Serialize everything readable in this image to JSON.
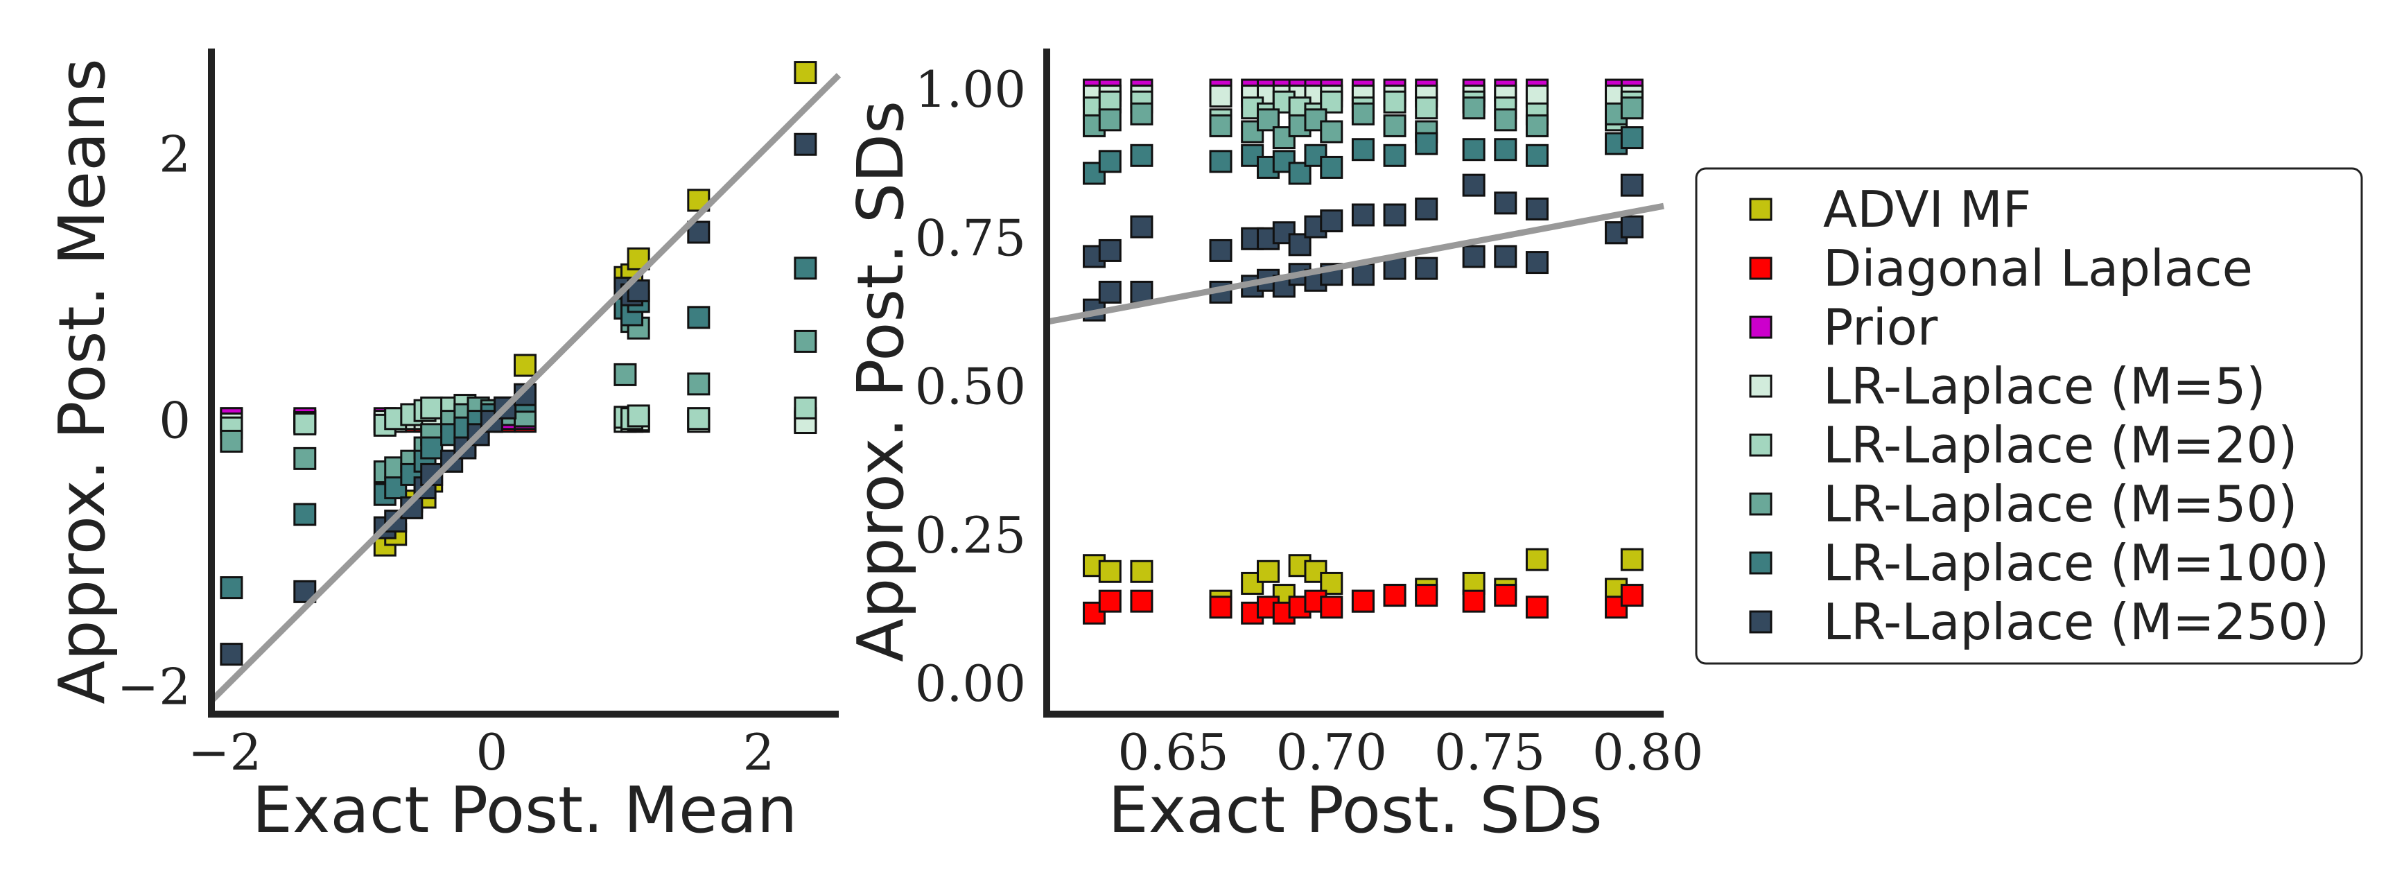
{
  "chart_data": [
    {
      "type": "scatter",
      "xlabel": "Exact Post. Mean",
      "ylabel": "Approx. Post. Means",
      "xlim": [
        -2.1,
        2.6
      ],
      "ylim": [
        -2.2,
        2.8
      ],
      "x_ticks": [
        -2,
        0,
        2
      ],
      "x_tick_labels": [
        "−2",
        "0",
        "2"
      ],
      "y_ticks": [
        -2,
        0,
        2
      ],
      "y_tick_labels": [
        "−2",
        "0",
        "2"
      ],
      "reference_line": {
        "x": [
          -2.1,
          2.6
        ],
        "y": [
          -2.1,
          2.6
        ]
      },
      "x": [
        -1.95,
        -1.4,
        -0.8,
        -0.72,
        -0.6,
        -0.5,
        -0.45,
        -0.3,
        -0.2,
        -0.1,
        0.0,
        0.1,
        0.25,
        1.0,
        1.05,
        1.1,
        1.55,
        2.35
      ],
      "series": [
        {
          "name": "ADVI MF",
          "color": "#c3c30f",
          "values": [
            0.02,
            0.0,
            -0.93,
            -0.85,
            -0.6,
            -0.57,
            -0.45,
            -0.3,
            -0.18,
            -0.1,
            0.0,
            0.1,
            0.42,
            1.08,
            1.1,
            1.22,
            1.66,
            2.62
          ]
        },
        {
          "name": "Diagonal Laplace",
          "color": "#ff0000",
          "values": [
            0.0,
            0.0,
            -0.02,
            0.0,
            0.0,
            0.0,
            0.0,
            0.0,
            0.0,
            0.0,
            0.0,
            0.0,
            0.0,
            0.0,
            0.0,
            0.0,
            0.0,
            0.0
          ]
        },
        {
          "name": "Prior",
          "color": "#cc00cc",
          "values": [
            0.02,
            0.02,
            0.02,
            0.02,
            0.02,
            0.02,
            0.02,
            0.02,
            0.02,
            0.02,
            0.02,
            0.02,
            0.02,
            0.02,
            0.02,
            0.02,
            0.02,
            0.02
          ]
        },
        {
          "name": "LR-Laplace (M=5)",
          "color": "#d2ecdc",
          "values": [
            -0.02,
            -0.01,
            0.0,
            0.0,
            0.02,
            0.02,
            0.03,
            0.04,
            0.05,
            0.05,
            0.04,
            0.05,
            0.04,
            0.0,
            0.0,
            0.01,
            0.0,
            -0.01
          ]
        },
        {
          "name": "LR-Laplace (M=20)",
          "color": "#a3d6bf",
          "values": [
            -0.05,
            -0.02,
            -0.03,
            0.02,
            0.05,
            0.08,
            0.1,
            0.1,
            0.12,
            0.1,
            0.08,
            0.06,
            0.05,
            0.03,
            0.02,
            0.04,
            0.02,
            0.1
          ]
        },
        {
          "name": "LR-Laplace (M=50)",
          "color": "#6aa899",
          "values": [
            -0.15,
            -0.28,
            -0.38,
            -0.35,
            -0.3,
            -0.2,
            -0.1,
            0.0,
            0.05,
            0.1,
            0.08,
            0.05,
            0.04,
            0.35,
            0.75,
            0.7,
            0.28,
            0.6
          ]
        },
        {
          "name": "LR-Laplace (M=100)",
          "color": "#3d7e80",
          "values": [
            -1.25,
            -0.7,
            -0.55,
            -0.5,
            -0.4,
            -0.3,
            -0.2,
            -0.1,
            -0.05,
            0.0,
            0.05,
            0.1,
            0.15,
            0.85,
            0.8,
            0.9,
            0.78,
            1.15
          ]
        },
        {
          "name": "LR-Laplace (M=250)",
          "color": "#34495e",
          "values": [
            -1.75,
            -1.28,
            -0.8,
            -0.75,
            -0.65,
            -0.5,
            -0.4,
            -0.3,
            -0.2,
            -0.1,
            0.0,
            0.1,
            0.2,
            1.0,
            0.95,
            0.98,
            1.42,
            2.08
          ]
        }
      ]
    },
    {
      "type": "scatter",
      "xlabel": "Exact Post. SDs",
      "ylabel": "Approx. Post. SDs",
      "xlim": [
        0.61,
        0.805
      ],
      "ylim": [
        -0.05,
        1.07
      ],
      "x_ticks": [
        0.65,
        0.7,
        0.75,
        0.8
      ],
      "x_tick_labels": [
        "0.65",
        "0.70",
        "0.75",
        "0.80"
      ],
      "y_ticks": [
        0.0,
        0.25,
        0.5,
        0.75,
        1.0
      ],
      "y_tick_labels": [
        "0.00",
        "0.25",
        "0.50",
        "0.75",
        "1.00"
      ],
      "reference_line": {
        "x": [
          0.61,
          0.805
        ],
        "y": [
          0.61,
          0.805
        ]
      },
      "x": [
        0.625,
        0.63,
        0.64,
        0.665,
        0.675,
        0.68,
        0.685,
        0.69,
        0.695,
        0.7,
        0.71,
        0.72,
        0.73,
        0.745,
        0.755,
        0.765,
        0.79,
        0.795
      ],
      "series": [
        {
          "name": "ADVI MF",
          "color": "#c3c30f",
          "values": [
            0.2,
            0.19,
            0.19,
            0.14,
            0.17,
            0.19,
            0.15,
            0.2,
            0.19,
            0.17,
            0.14,
            0.15,
            0.16,
            0.17,
            0.16,
            0.21,
            0.16,
            0.21
          ]
        },
        {
          "name": "Diagonal Laplace",
          "color": "#ff0000",
          "values": [
            0.12,
            0.14,
            0.14,
            0.13,
            0.12,
            0.13,
            0.12,
            0.13,
            0.14,
            0.13,
            0.14,
            0.15,
            0.15,
            0.14,
            0.15,
            0.13,
            0.13,
            0.15
          ]
        },
        {
          "name": "Prior",
          "color": "#cc00cc",
          "values": [
            1.0,
            1.0,
            1.0,
            1.0,
            1.0,
            1.0,
            1.0,
            1.0,
            1.0,
            1.0,
            1.0,
            1.0,
            1.0,
            1.0,
            1.0,
            1.0,
            1.0,
            1.0
          ]
        },
        {
          "name": "LR-Laplace (M=5)",
          "color": "#d2ecdc",
          "values": [
            0.99,
            0.99,
            0.99,
            0.99,
            0.99,
            0.99,
            0.99,
            0.99,
            0.99,
            0.99,
            0.99,
            0.99,
            0.99,
            0.99,
            0.99,
            0.99,
            0.99,
            0.99
          ]
        },
        {
          "name": "LR-Laplace (M=20)",
          "color": "#a3d6bf",
          "values": [
            0.97,
            0.98,
            0.98,
            0.95,
            0.97,
            0.96,
            0.98,
            0.97,
            0.96,
            0.98,
            0.97,
            0.98,
            0.97,
            0.98,
            0.97,
            0.96,
            0.95,
            0.98
          ]
        },
        {
          "name": "LR-Laplace (M=50)",
          "color": "#6aa899",
          "values": [
            0.94,
            0.95,
            0.96,
            0.94,
            0.93,
            0.95,
            0.92,
            0.94,
            0.95,
            0.93,
            0.96,
            0.94,
            0.93,
            0.97,
            0.95,
            0.94,
            0.96,
            0.97
          ]
        },
        {
          "name": "LR-Laplace (M=100)",
          "color": "#3d7e80",
          "values": [
            0.86,
            0.88,
            0.89,
            0.88,
            0.89,
            0.87,
            0.88,
            0.86,
            0.89,
            0.87,
            0.9,
            0.89,
            0.91,
            0.9,
            0.9,
            0.89,
            0.91,
            0.92
          ]
        },
        {
          "name": "LR-Laplace (M=250)",
          "color": "#34495e",
          "values": [
            0.72,
            0.73,
            0.77,
            0.73,
            0.75,
            0.75,
            0.76,
            0.74,
            0.77,
            0.78,
            0.79,
            0.79,
            0.8,
            0.84,
            0.81,
            0.8,
            0.76,
            0.84
          ]
        },
        {
          "name": "LR-Laplace (M=250) low",
          "legend": false,
          "color": "#34495e",
          "values": [
            0.63,
            0.66,
            0.66,
            0.66,
            0.67,
            0.68,
            0.67,
            0.69,
            0.68,
            0.69,
            0.69,
            0.7,
            0.7,
            0.72,
            0.72,
            0.71,
            0.76,
            0.77
          ]
        }
      ]
    }
  ],
  "legend": {
    "position": "right",
    "entries": [
      {
        "label": "ADVI MF",
        "color": "#c3c30f"
      },
      {
        "label": "Diagonal Laplace",
        "color": "#ff0000"
      },
      {
        "label": "Prior",
        "color": "#cc00cc"
      },
      {
        "label": "LR-Laplace (M=5)",
        "color": "#d2ecdc"
      },
      {
        "label": "LR-Laplace (M=20)",
        "color": "#a3d6bf"
      },
      {
        "label": "LR-Laplace (M=50)",
        "color": "#6aa899"
      },
      {
        "label": "LR-Laplace (M=100)",
        "color": "#3d7e80"
      },
      {
        "label": "LR-Laplace (M=250)",
        "color": "#34495e"
      }
    ]
  }
}
